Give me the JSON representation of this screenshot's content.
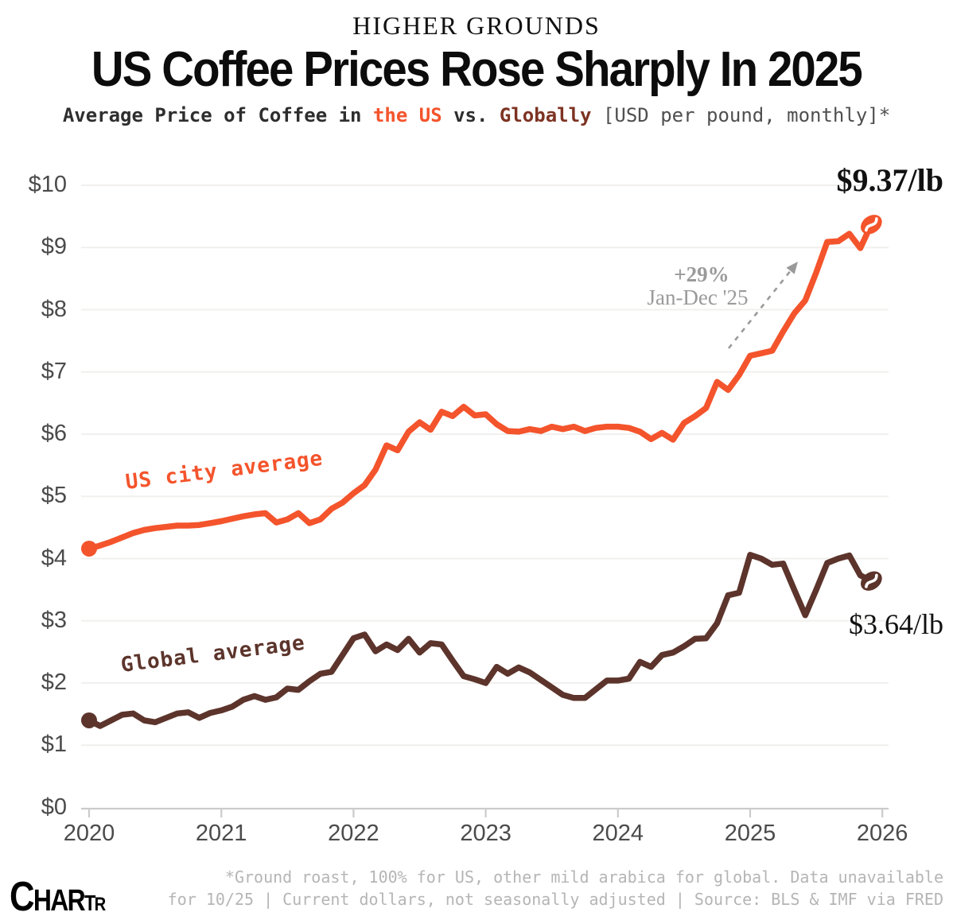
{
  "header": {
    "kicker": "HIGHER GROUNDS",
    "title": "US Coffee Prices Rose Sharply In 2025",
    "subtitle": {
      "prefix": "Average Price of Coffee in ",
      "us_highlight": "the US",
      "mid": " vs. ",
      "global_highlight": "Globally",
      "unit_note": " [USD per pound, monthly]*"
    }
  },
  "chart_data": {
    "type": "line",
    "title": "US Coffee Prices Rose Sharply In 2025",
    "xlabel": "",
    "ylabel": "USD per pound",
    "x_unit": "month",
    "x_start": "2020-01",
    "x_end": "2025-12",
    "x_tick_labels": [
      "2020",
      "2021",
      "2022",
      "2023",
      "2024",
      "2025",
      "2026"
    ],
    "y_ticks": [
      0,
      1,
      2,
      3,
      4,
      5,
      6,
      7,
      8,
      9,
      10
    ],
    "y_tick_labels": [
      "$0",
      "$1",
      "$2",
      "$3",
      "$4",
      "$5",
      "$6",
      "$7",
      "$8",
      "$9",
      "$10"
    ],
    "ylim": [
      0,
      10
    ],
    "grid": true,
    "legend": "inline-labels",
    "series": [
      {
        "name": "US city average",
        "color": "#F4542C",
        "values": [
          4.16,
          4.21,
          4.27,
          4.34,
          4.41,
          4.46,
          4.49,
          4.51,
          4.53,
          4.53,
          4.54,
          4.57,
          4.6,
          4.64,
          4.68,
          4.71,
          4.73,
          4.58,
          4.63,
          4.73,
          4.57,
          4.63,
          4.8,
          4.9,
          5.05,
          5.18,
          5.43,
          5.82,
          5.74,
          6.04,
          6.19,
          6.07,
          6.36,
          6.29,
          6.44,
          6.3,
          6.32,
          6.16,
          6.05,
          6.04,
          6.08,
          6.05,
          6.12,
          6.08,
          6.12,
          6.05,
          6.1,
          6.12,
          6.12,
          6.1,
          6.04,
          5.92,
          6.02,
          5.91,
          6.18,
          6.29,
          6.42,
          6.84,
          6.71,
          6.95,
          7.26,
          7.3,
          7.34,
          7.65,
          7.94,
          8.15,
          8.6,
          9.09,
          9.1,
          9.22,
          8.99,
          9.37
        ]
      },
      {
        "name": "Global average",
        "color": "#5C342B",
        "values": [
          1.4,
          1.31,
          1.4,
          1.49,
          1.51,
          1.4,
          1.37,
          1.44,
          1.51,
          1.53,
          1.44,
          1.52,
          1.56,
          1.62,
          1.73,
          1.79,
          1.73,
          1.77,
          1.91,
          1.89,
          2.03,
          2.15,
          2.18,
          2.45,
          2.72,
          2.78,
          2.51,
          2.62,
          2.53,
          2.71,
          2.49,
          2.64,
          2.62,
          2.36,
          2.11,
          2.06,
          2.0,
          2.26,
          2.15,
          2.25,
          2.17,
          2.05,
          1.93,
          1.81,
          1.76,
          1.76,
          1.9,
          2.04,
          2.04,
          2.07,
          2.34,
          2.26,
          2.45,
          2.49,
          2.59,
          2.71,
          2.72,
          2.96,
          3.41,
          3.45,
          4.06,
          4.0,
          3.9,
          3.92,
          3.5,
          3.09,
          3.5,
          3.93,
          4.0,
          4.05,
          3.73,
          3.64
        ]
      }
    ],
    "annotations": {
      "us_end_label": "$9.37/lb",
      "global_end_label": "$3.64/lb",
      "pct_change": "+29%",
      "pct_range": "Jan-Dec '25"
    }
  },
  "colors": {
    "us_line": "#F4542C",
    "global_line": "#5C342B",
    "annotation_gray": "#9a9a9a",
    "axis_text": "#4b4b4b",
    "gridline": "#f1f0ee",
    "axis_line": "#cbcbcb",
    "footnote": "#b5b5b5"
  },
  "footer": {
    "note_line1": "*Ground roast, 100% for US, other mild arabica for global. Data unavailable",
    "note_line2": "for 10/25 | Current dollars, not seasonally adjusted | Source: BLS & IMF via FRED",
    "logo": {
      "l1": "C",
      "l2": "HAR",
      "l3": "T",
      "l4": "R"
    }
  }
}
